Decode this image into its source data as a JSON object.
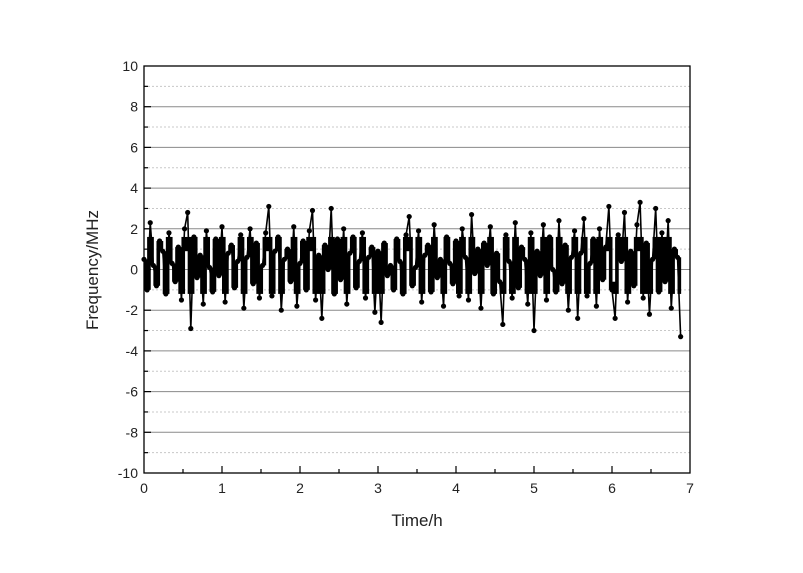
{
  "chart_data": {
    "type": "line",
    "title": "",
    "xlabel": "Time/h",
    "ylabel": "Frequency/MHz",
    "xlim": [
      0,
      7
    ],
    "ylim": [
      -10,
      10
    ],
    "xticks": [
      "0",
      "1",
      "2",
      "3",
      "4",
      "5",
      "6",
      "7"
    ],
    "yticks": [
      "-10",
      "-8",
      "-6",
      "-4",
      "-2",
      "0",
      "2",
      "4",
      "6",
      "8",
      "10"
    ],
    "grid": "major solid, minor dotted (horizontal)",
    "markers": "filled circles",
    "color": "#000000",
    "grid_color": "#9a9a9a",
    "series": [
      {
        "t_start": 0,
        "t_end": 6.88,
        "values": [
          0.5,
          -1.0,
          2.3,
          0.2,
          -0.8,
          1.4,
          0.9,
          -1.2,
          1.8,
          0.3,
          -0.6,
          1.1,
          -1.5,
          2.0,
          2.8,
          -2.9,
          1.6,
          -0.4,
          0.7,
          -1.7,
          1.9,
          0.1,
          -1.1,
          1.5,
          -0.3,
          2.1,
          -1.6,
          0.8,
          1.2,
          -0.9,
          0.4,
          1.7,
          -1.9,
          0.6,
          2.0,
          -0.7,
          1.3,
          -1.4,
          0.2,
          1.8,
          3.1,
          -1.3,
          0.9,
          1.6,
          -2.0,
          0.5,
          1.0,
          -0.6,
          2.1,
          -1.8,
          0.3,
          1.4,
          -1.0,
          1.9,
          2.9,
          -1.5,
          0.7,
          -2.4,
          1.2,
          0.0,
          3.0,
          -1.2,
          1.5,
          -0.5,
          2.0,
          -1.7,
          0.8,
          1.6,
          -0.9,
          0.4,
          1.8,
          -1.4,
          0.6,
          1.1,
          -2.1,
          0.9,
          -2.6,
          1.3,
          -0.3,
          0.2,
          -1.0,
          1.5,
          0.4,
          -1.2,
          1.7,
          2.6,
          -0.8,
          0.1,
          1.9,
          -1.6,
          0.7,
          1.2,
          -1.1,
          2.2,
          -0.4,
          0.5,
          -1.8,
          1.6,
          0.3,
          -0.7,
          1.4,
          -1.3,
          2.0,
          0.6,
          -1.5,
          2.7,
          -0.2,
          1.0,
          -1.9,
          1.3,
          0.2,
          2.1,
          -1.2,
          0.8,
          -0.6,
          -2.7,
          1.7,
          0.4,
          -1.4,
          2.3,
          -0.9,
          1.1,
          0.5,
          -1.7,
          1.8,
          -3.0,
          0.9,
          -0.3,
          2.2,
          -1.5,
          1.6,
          0.0,
          -1.1,
          2.4,
          -0.7,
          1.2,
          -2.0,
          0.6,
          1.9,
          -2.4,
          0.8,
          2.5,
          -1.3,
          0.3,
          1.5,
          -1.8,
          2.0,
          -0.5,
          1.1,
          3.1,
          -1.0,
          -2.4,
          1.7,
          0.4,
          2.8,
          -1.6,
          0.9,
          -0.8,
          2.2,
          3.3,
          -1.4,
          1.3,
          -2.2,
          0.5,
          3.0,
          -1.1,
          1.8,
          -0.6,
          2.4,
          -1.9,
          1.0,
          0.6,
          -3.3
        ]
      }
    ]
  }
}
